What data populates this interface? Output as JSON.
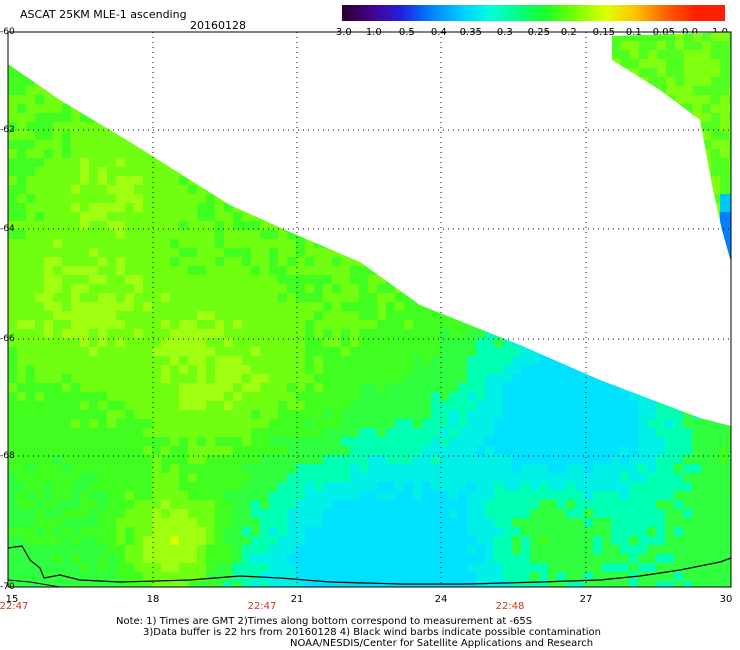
{
  "header": {
    "title": "ASCAT 25KM MLE-1 ascending",
    "date": "20160128"
  },
  "colorbar": {
    "ticks": [
      "-3.0",
      "-1.0",
      "-0.5",
      "-0.4",
      "-0.35",
      "-0.3",
      "-0.25",
      "-0.2",
      "-0.15",
      "-0.1",
      "-0.05",
      "0.0",
      "1.0"
    ],
    "colors": [
      "#2a0028",
      "#46008c",
      "#2020e0",
      "#0080ff",
      "#00c8ff",
      "#00ffe0",
      "#00ff80",
      "#20ff20",
      "#80ff00",
      "#e0ff00",
      "#ffc000",
      "#ff6000",
      "#ff2000"
    ]
  },
  "axes": {
    "lat_ticks": [
      "-60",
      "-62",
      "-64",
      "-66",
      "-68",
      "-70"
    ],
    "lon_ticks": [
      "15",
      "18",
      "21",
      "24",
      "27",
      "30"
    ],
    "lat_range": [
      -70,
      -60
    ],
    "lon_range": [
      15,
      30
    ]
  },
  "times": [
    "22:47",
    "22:47",
    "22:48"
  ],
  "notes": [
    "Note: 1) Times are GMT 2)Times along bottom correspond to measurement at -65S",
    "3)Data buffer is 22 hrs from 20160128 4) Black wind barbs indicate possible contamination",
    "NOAA/NESDIS/Center for Satellite Applications and Research"
  ]
}
